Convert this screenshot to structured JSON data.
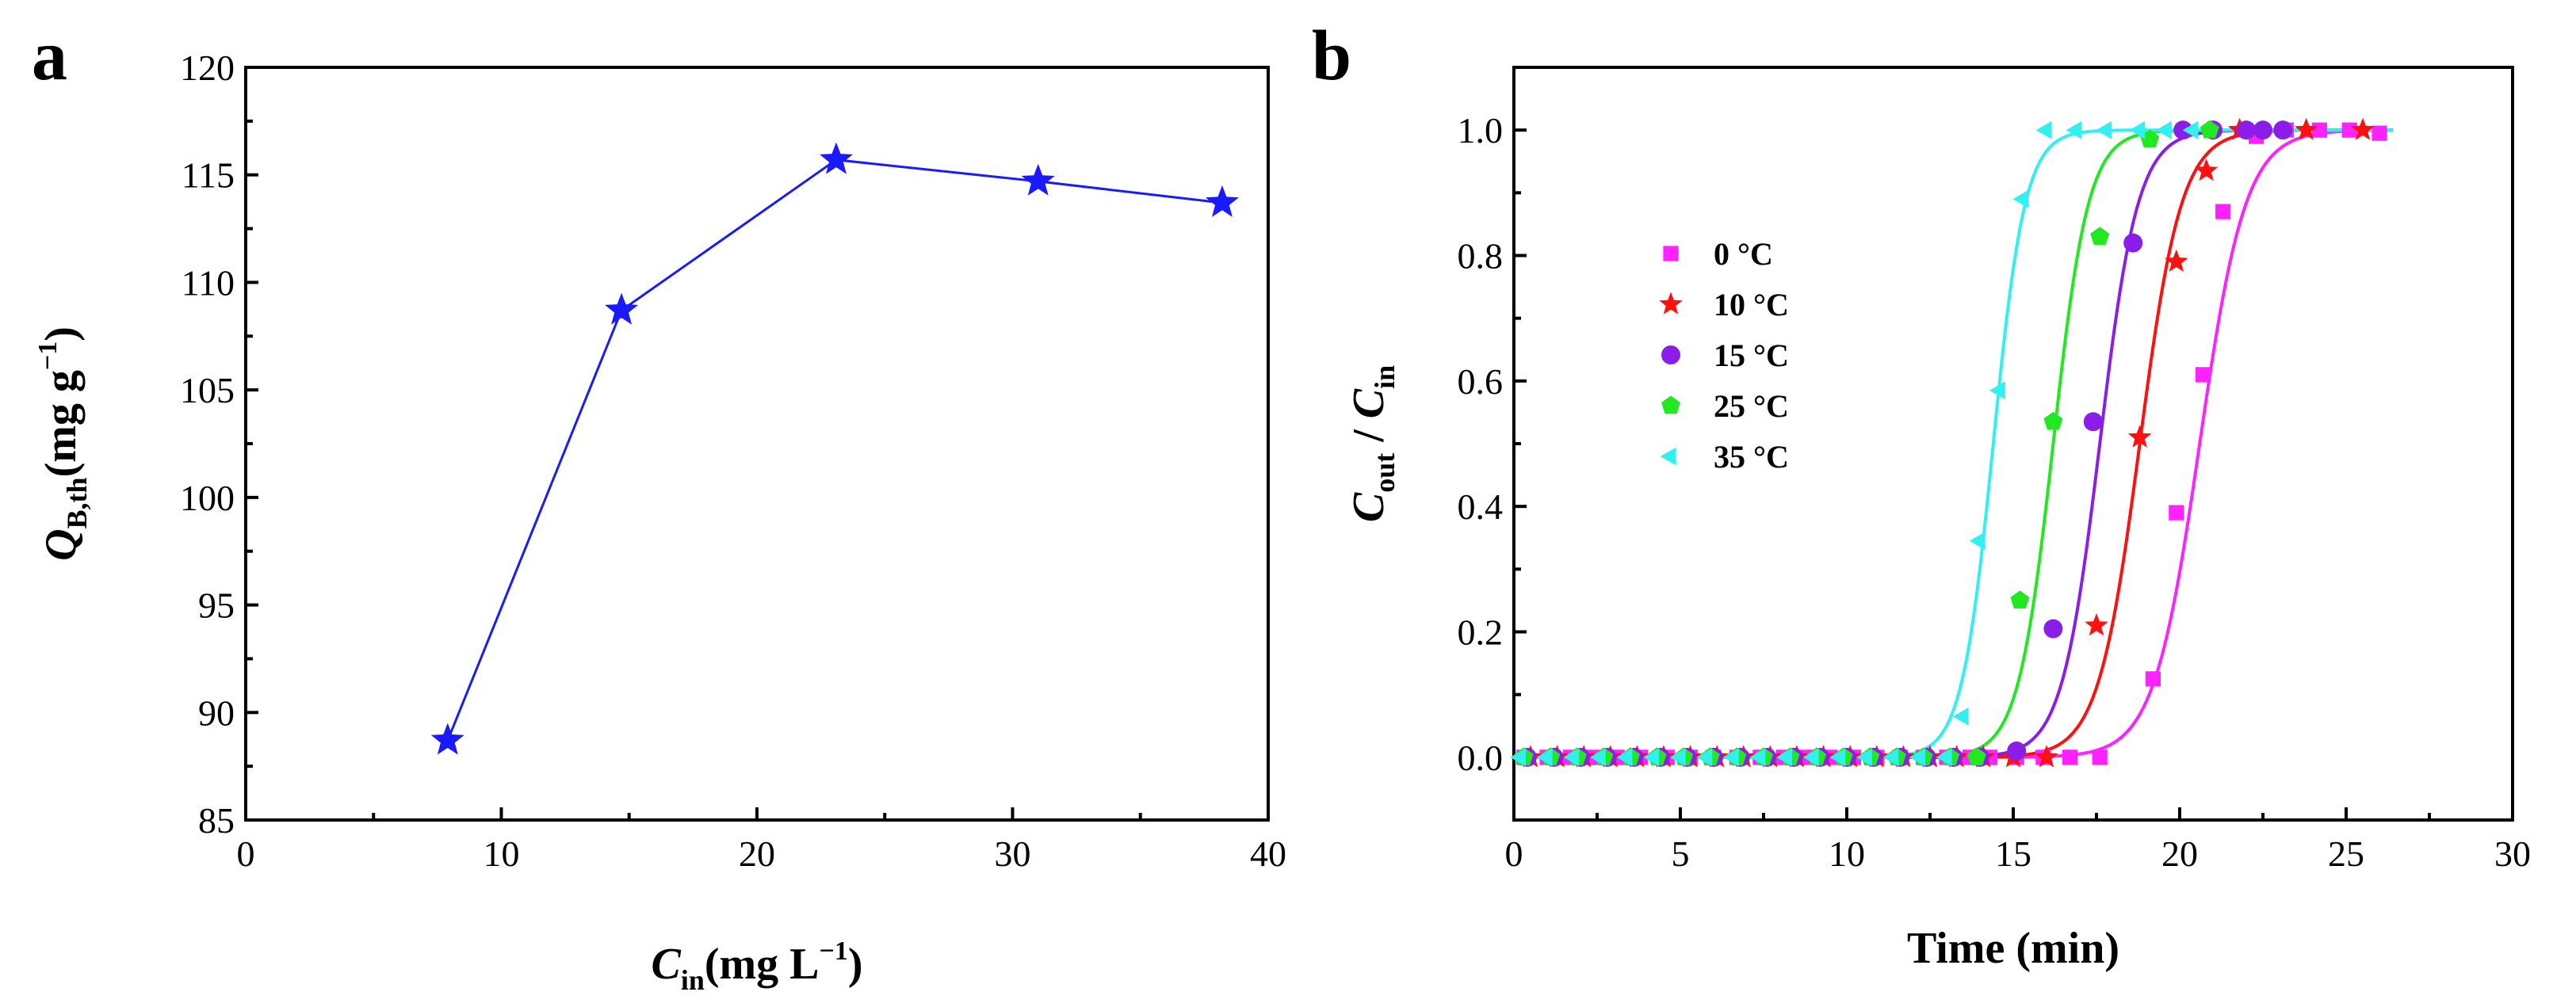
{
  "chart_data": [
    {
      "panel_label": "a",
      "type": "line",
      "x": [
        7.9,
        14.7,
        23.1,
        31.0,
        38.2
      ],
      "values": [
        88.7,
        108.7,
        115.7,
        114.7,
        113.7
      ],
      "marker": "star",
      "color": "#1a1aff",
      "xlabel": {
        "main": "C",
        "sub": "in",
        "unit": "(mg L",
        "sup": "−1",
        "close": ")"
      },
      "ylabel": {
        "main": "Q",
        "sub": "B,th",
        "unit": "(mg g",
        "sup": "−1",
        "close": ")"
      },
      "xlim": [
        0,
        40
      ],
      "ylim": [
        85,
        120
      ],
      "xticks": [
        "0",
        "10",
        "20",
        "30",
        "40"
      ],
      "yticks": [
        "85",
        "90",
        "95",
        "100",
        "105",
        "110",
        "115",
        "120"
      ],
      "grid": false
    },
    {
      "panel_label": "b",
      "type": "scatter",
      "xlabel": "Time (min)",
      "ylabel": {
        "main": "C",
        "sub": "out",
        "sep": " / ",
        "main2": "C",
        "sub2": "in"
      },
      "xlim": [
        0,
        30
      ],
      "ylim": [
        -0.1,
        1.1
      ],
      "xticks": [
        "0",
        "5",
        "10",
        "15",
        "20",
        "25",
        "30"
      ],
      "yticks": [
        "0.0",
        "0.2",
        "0.4",
        "0.6",
        "0.8",
        "1.0"
      ],
      "legend_position": "center-left",
      "grid": false,
      "series": [
        {
          "name": "0 °C",
          "marker": "square",
          "color": "#ff22ff",
          "fit_t50": 20.6,
          "fit_k": 1.45,
          "x": [
            0.3,
            1.0,
            1.7,
            2.4,
            3.1,
            3.8,
            4.6,
            5.3,
            6.0,
            6.7,
            7.4,
            8.1,
            8.8,
            9.5,
            10.2,
            10.9,
            11.6,
            12.3,
            13.0,
            13.7,
            14.3,
            15.1,
            15.9,
            16.7,
            17.6,
            19.2,
            19.9,
            20.7,
            21.3,
            22.3,
            23.2,
            24.2,
            25.1,
            26.0
          ],
          "values": [
            0,
            0,
            0,
            0,
            0,
            0,
            0,
            0,
            0,
            0,
            0,
            0,
            0,
            0,
            0,
            0,
            0,
            0,
            0,
            0,
            0,
            0,
            0,
            0,
            0,
            0.125,
            0.39,
            0.61,
            0.87,
            0.99,
            1.0,
            1.0,
            1.0,
            0.995
          ]
        },
        {
          "name": "10 °C",
          "marker": "star",
          "color": "#ff1010",
          "fit_t50": 18.8,
          "fit_k": 1.6,
          "x": [
            0.5,
            1.3,
            2.1,
            2.9,
            3.7,
            4.5,
            5.3,
            6.1,
            6.9,
            7.7,
            8.5,
            9.3,
            10.1,
            10.9,
            11.7,
            12.5,
            13.3,
            14.1,
            15.0,
            16.0,
            17.5,
            18.8,
            19.9,
            20.8,
            21.8,
            23.8,
            25.5
          ],
          "values": [
            0,
            0,
            0,
            0,
            0,
            0,
            0,
            0,
            0,
            0,
            0,
            0,
            0,
            0,
            0,
            0,
            0,
            0,
            0,
            0,
            0.21,
            0.51,
            0.79,
            0.935,
            1.0,
            1.0,
            1.0
          ]
        },
        {
          "name": "15 °C",
          "marker": "circle",
          "color": "#8a1ee8",
          "fit_t50": 17.6,
          "fit_k": 1.75,
          "x": [
            0.4,
            1.2,
            2.0,
            2.8,
            3.6,
            4.4,
            5.2,
            6.0,
            6.8,
            7.6,
            8.4,
            9.2,
            10.0,
            10.8,
            11.6,
            12.4,
            13.2,
            14.0,
            15.1,
            16.2,
            17.4,
            18.6,
            20.1,
            21.0,
            22.0,
            22.5,
            23.1
          ],
          "values": [
            0,
            0,
            0,
            0,
            0,
            0,
            0,
            0,
            0,
            0,
            0,
            0,
            0,
            0,
            0,
            0,
            0,
            0,
            0.01,
            0.205,
            0.535,
            0.82,
            1.0,
            1.0,
            1.0,
            1.0,
            1.0
          ]
        },
        {
          "name": "25 °C",
          "marker": "pentagon",
          "color": "#22e822",
          "fit_t50": 16.2,
          "fit_k": 1.9,
          "x": [
            0.3,
            1.1,
            1.9,
            2.7,
            3.5,
            4.3,
            5.1,
            5.9,
            6.7,
            7.5,
            8.3,
            9.1,
            9.9,
            10.7,
            11.5,
            12.3,
            13.1,
            13.9,
            15.2,
            16.2,
            17.6,
            19.1,
            20.9
          ],
          "values": [
            0,
            0,
            0,
            0,
            0,
            0,
            0,
            0,
            0,
            0,
            0,
            0,
            0,
            0,
            0,
            0,
            0,
            0,
            0.25,
            0.535,
            0.83,
            0.985,
            1.0
          ]
        },
        {
          "name": "35 °C",
          "marker": "triangle-left",
          "color": "#33f0f0",
          "fit_t50": 14.4,
          "fit_k": 2.1,
          "x": [
            0.2,
            1.0,
            1.8,
            2.6,
            3.4,
            4.2,
            5.0,
            5.8,
            6.6,
            7.4,
            8.2,
            9.0,
            9.8,
            10.6,
            11.4,
            12.2,
            13.0,
            13.5,
            14.0,
            14.6,
            15.3,
            16.0,
            16.9,
            17.8,
            18.8,
            19.6,
            20.4
          ],
          "values": [
            0,
            0,
            0,
            0,
            0,
            0,
            0,
            0,
            0,
            0,
            0,
            0,
            0,
            0,
            0,
            0,
            0,
            0.065,
            0.345,
            0.585,
            0.89,
            1.0,
            1.0,
            1.0,
            1.0,
            1.0,
            1.0
          ]
        }
      ]
    }
  ]
}
